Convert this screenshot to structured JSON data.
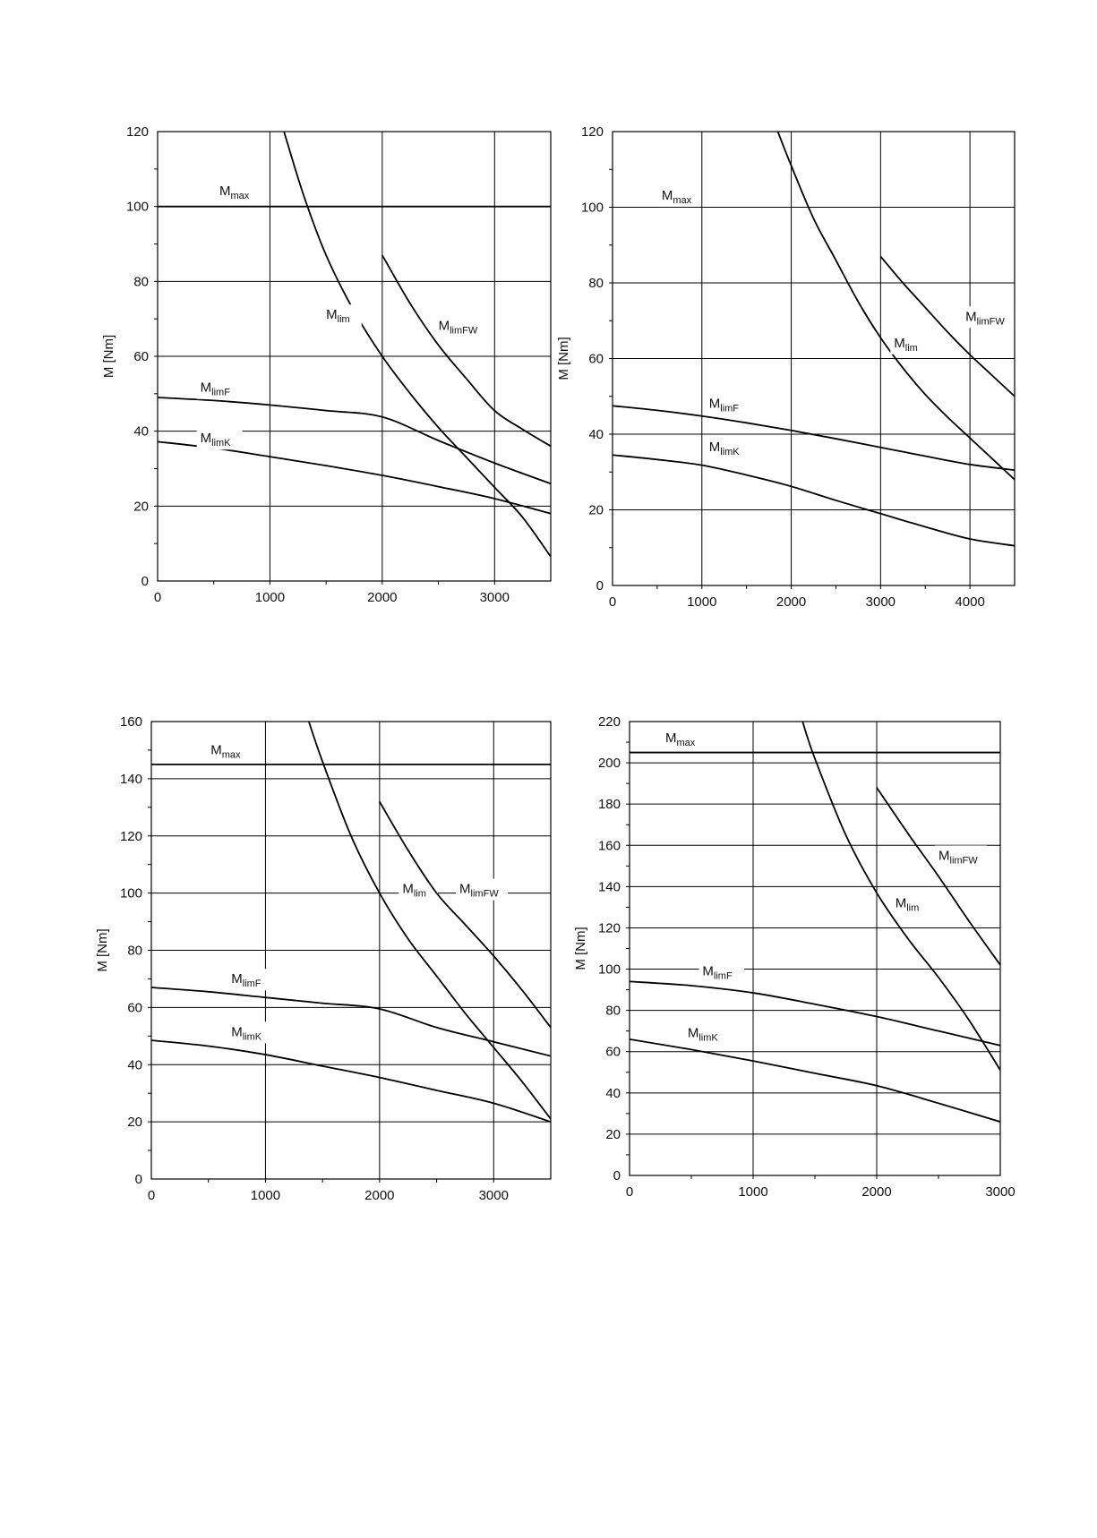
{
  "chart_data": [
    {
      "type": "line",
      "xlim": [
        0,
        3500
      ],
      "ylim": [
        0,
        120
      ],
      "x_ticks": [
        0,
        1000,
        2000,
        3000
      ],
      "y_ticks": [
        0,
        20,
        40,
        60,
        80,
        100,
        120
      ],
      "x_minor": 500,
      "y_minor": 10,
      "ylabel": "M [Nm]",
      "grid": true,
      "series": [
        {
          "name": "Mmax",
          "label_main": "M",
          "label_sub": "max",
          "x": [
            0,
            3500
          ],
          "y": [
            100,
            100
          ],
          "label_at": [
            550,
            103
          ]
        },
        {
          "name": "Mlim",
          "label_main": "M",
          "label_sub": "lim",
          "x": [
            1125,
            1300,
            1500,
            1750,
            2000,
            2250,
            2500,
            2750,
            3000,
            3250,
            3500
          ],
          "y": [
            120,
            103,
            87,
            72,
            60,
            50,
            41,
            33,
            25,
            17,
            6.5
          ],
          "label_at": [
            1500,
            70
          ]
        },
        {
          "name": "MlimFW",
          "label_main": "M",
          "label_sub": "limFW",
          "x": [
            2000,
            2250,
            2500,
            2750,
            3000,
            3250,
            3500
          ],
          "y": [
            87,
            74,
            63,
            54,
            45.5,
            40.5,
            36
          ],
          "label_at": [
            2500,
            67
          ]
        },
        {
          "name": "MlimF",
          "label_main": "M",
          "label_sub": "limF",
          "x": [
            0,
            500,
            1000,
            1500,
            2000,
            2500,
            3000,
            3500
          ],
          "y": [
            49,
            48.2,
            47,
            45.5,
            43.8,
            37.5,
            31.5,
            26
          ],
          "label_at": [
            380,
            50.5
          ]
        },
        {
          "name": "MlimK",
          "label_main": "M",
          "label_sub": "limK",
          "x": [
            0,
            500,
            1000,
            1500,
            2000,
            2500,
            3000,
            3500
          ],
          "y": [
            37.2,
            35.5,
            33.2,
            30.8,
            28.2,
            25.2,
            22,
            18
          ],
          "label_at": [
            380,
            37
          ]
        }
      ]
    },
    {
      "type": "line",
      "xlim": [
        0,
        4500
      ],
      "ylim": [
        0,
        120
      ],
      "x_ticks": [
        0,
        1000,
        2000,
        3000,
        4000
      ],
      "y_ticks": [
        0,
        20,
        40,
        60,
        80,
        100,
        120
      ],
      "x_minor": 500,
      "y_minor": 10,
      "ylabel": "M [Nm]",
      "grid": true,
      "series": [
        {
          "name": "Mmax",
          "label_main": "M",
          "label_sub": "max",
          "x": [],
          "y": [],
          "label_at": [
            550,
            102
          ]
        },
        {
          "name": "Mlim",
          "label_main": "M",
          "label_sub": "lim",
          "x": [
            1850,
            2000,
            2250,
            2500,
            2750,
            3000,
            3250,
            3500,
            3750,
            4000,
            4250,
            4500
          ],
          "y": [
            120,
            111,
            97,
            86,
            75,
            65.5,
            57.5,
            50.5,
            44.5,
            39,
            33.5,
            28
          ],
          "label_at": [
            3150,
            63
          ]
        },
        {
          "name": "MlimFW",
          "label_main": "M",
          "label_sub": "limFW",
          "x": [
            3000,
            3250,
            3500,
            3750,
            4000,
            4250,
            4500
          ],
          "y": [
            87,
            80,
            73.5,
            67,
            61,
            55.5,
            50
          ],
          "label_at": [
            3950,
            70
          ]
        },
        {
          "name": "MlimF",
          "label_main": "M",
          "label_sub": "limF",
          "x": [
            0,
            500,
            1000,
            1500,
            2000,
            2500,
            3000,
            3500,
            4000,
            4500
          ],
          "y": [
            47.5,
            46.3,
            44.8,
            43,
            41,
            38.8,
            36.5,
            34.2,
            32,
            30.5
          ],
          "label_at": [
            1080,
            47
          ]
        },
        {
          "name": "MlimK",
          "label_main": "M",
          "label_sub": "limK",
          "x": [
            0,
            500,
            1000,
            1500,
            2000,
            2500,
            3000,
            3500,
            4000,
            4500
          ],
          "y": [
            34.5,
            33.3,
            31.8,
            29.2,
            26.2,
            22.5,
            19,
            15.5,
            12.3,
            10.5
          ],
          "label_at": [
            1080,
            35.5
          ]
        }
      ]
    },
    {
      "type": "line",
      "xlim": [
        0,
        3500
      ],
      "ylim": [
        0,
        160
      ],
      "x_ticks": [
        0,
        1000,
        2000,
        3000
      ],
      "y_ticks": [
        0,
        20,
        40,
        60,
        80,
        100,
        120,
        140,
        160
      ],
      "x_minor": 500,
      "y_minor": 10,
      "ylabel": "M [Nm]",
      "grid": true,
      "series": [
        {
          "name": "Mmax",
          "label_main": "M",
          "label_sub": "max",
          "x": [
            0,
            3500
          ],
          "y": [
            145,
            145
          ],
          "label_at": [
            520,
            148.5
          ]
        },
        {
          "name": "Mlim",
          "label_main": "M",
          "label_sub": "lim",
          "x": [
            1380,
            1500,
            1750,
            2000,
            2250,
            2500,
            2750,
            3000,
            3250,
            3500
          ],
          "y": [
            160,
            146,
            120,
            100,
            84,
            71,
            58,
            46,
            34,
            21
          ]
        },
        {
          "name": "MlimFW",
          "label_main": "M",
          "label_sub": "limFW",
          "x": [
            2000,
            2250,
            2500,
            2750,
            3000,
            3250,
            3500
          ],
          "y": [
            132,
            115,
            100,
            89,
            78,
            66,
            53
          ]
        },
        {
          "name": "MlimF",
          "label_main": "M",
          "label_sub": "limF",
          "x": [
            0,
            500,
            1000,
            1500,
            2000,
            2500,
            3000,
            3500
          ],
          "y": [
            67,
            65.5,
            63.5,
            61.5,
            59.5,
            53,
            48,
            43
          ]
        },
        {
          "name": "MlimK",
          "label_main": "M",
          "label_sub": "limK",
          "x": [
            0,
            500,
            1000,
            1500,
            2000,
            2500,
            3000,
            3500
          ],
          "y": [
            48.5,
            46.5,
            43.5,
            39.5,
            35.5,
            31,
            26.5,
            20
          ]
        }
      ]
    },
    {
      "type": "line",
      "xlim": [
        0,
        3000
      ],
      "ylim": [
        0,
        220
      ],
      "x_ticks": [
        0,
        1000,
        2000,
        3000
      ],
      "y_ticks": [
        0,
        20,
        40,
        60,
        80,
        100,
        120,
        140,
        160,
        180,
        200,
        220
      ],
      "x_minor": 500,
      "y_minor": 10,
      "ylabel": "M [Nm]",
      "grid": true,
      "series": [
        {
          "name": "Mmax",
          "label_main": "M",
          "label_sub": "max",
          "x": [
            0,
            3000
          ],
          "y": [
            205,
            205
          ],
          "label_at": [
            290,
            210
          ]
        },
        {
          "name": "Mlim",
          "label_main": "M",
          "label_sub": "lim",
          "x": [
            1400,
            1500,
            1750,
            2000,
            2250,
            2500,
            2750,
            3000
          ],
          "y": [
            220,
            202,
            165,
            137,
            115,
            96,
            75,
            51
          ],
          "label_at": [
            2150,
            130
          ]
        },
        {
          "name": "MlimFW",
          "label_main": "M",
          "label_sub": "limFW",
          "x": [
            2000,
            2250,
            2500,
            2750,
            3000
          ],
          "y": [
            188,
            166,
            145,
            123,
            102
          ],
          "label_at": [
            2500,
            153
          ]
        },
        {
          "name": "MlimF",
          "label_main": "M",
          "label_sub": "limF",
          "x": [
            0,
            500,
            1000,
            1500,
            2000,
            2500,
            3000
          ],
          "y": [
            94,
            92,
            88.5,
            83,
            77,
            70,
            63
          ],
          "label_at": [
            590,
            97
          ]
        },
        {
          "name": "MlimK",
          "label_main": "M",
          "label_sub": "limK",
          "x": [
            0,
            500,
            1000,
            1500,
            2000,
            2500,
            3000
          ],
          "y": [
            66,
            61,
            55.5,
            49.5,
            43.5,
            35,
            26
          ],
          "label_at": [
            470,
            67
          ]
        }
      ]
    }
  ]
}
